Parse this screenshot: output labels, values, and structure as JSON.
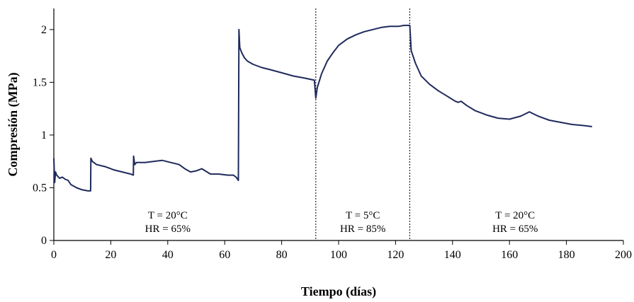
{
  "chart_data": {
    "type": "line",
    "title": "",
    "xlabel": "Tiempo (días)",
    "ylabel": "Compresión (MPa)",
    "xlim": [
      0,
      200
    ],
    "ylim": [
      0,
      2.2
    ],
    "xticks": [
      0,
      20,
      40,
      60,
      80,
      100,
      120,
      140,
      160,
      180,
      200
    ],
    "yticks": [
      0,
      0.5,
      1,
      1.5,
      2
    ],
    "xtick_labels": [
      "0",
      "20",
      "40",
      "60",
      "80",
      "100",
      "120",
      "140",
      "160",
      "180",
      "200"
    ],
    "ytick_labels": [
      "0",
      "0.5",
      "1",
      "1.5",
      "2"
    ],
    "grid": false,
    "line_color": "#1f2a5c",
    "divider_lines_x": [
      92,
      125
    ],
    "annotations": [
      {
        "x": 40,
        "y": 0.22,
        "line1": "T = 20°C",
        "line2": "HR = 65%"
      },
      {
        "x": 108.5,
        "y": 0.22,
        "line1": "T = 5°C",
        "line2": "HR = 85%"
      },
      {
        "x": 162,
        "y": 0.22,
        "line1": "T = 20°C",
        "line2": "HR = 65%"
      }
    ],
    "series": [
      {
        "x": [
          0,
          0.3,
          0.6,
          1,
          2,
          3,
          4,
          5,
          6,
          8,
          10,
          12,
          12.9,
          13,
          13.5,
          15,
          18,
          21,
          24,
          27,
          27.9,
          28,
          28.4,
          29,
          32,
          35,
          38,
          41,
          44,
          46,
          48,
          50,
          52,
          55,
          58,
          61,
          63,
          64,
          64.8,
          65,
          65.3,
          66,
          67,
          68,
          70,
          73,
          76,
          80,
          84,
          88,
          91.5,
          92,
          92.5,
          94,
          96,
          98,
          100,
          103,
          106,
          109,
          112,
          115,
          118,
          121,
          123,
          124.5,
          125,
          125.5,
          127,
          129,
          132,
          135,
          138,
          141,
          142,
          143,
          145,
          148,
          152,
          156,
          160,
          164,
          167,
          170,
          174,
          178,
          182,
          186,
          189
        ],
        "y": [
          0.78,
          0.55,
          0.65,
          0.62,
          0.59,
          0.6,
          0.58,
          0.57,
          0.53,
          0.5,
          0.48,
          0.47,
          0.47,
          0.78,
          0.75,
          0.72,
          0.7,
          0.67,
          0.65,
          0.63,
          0.62,
          0.8,
          0.72,
          0.74,
          0.74,
          0.75,
          0.76,
          0.74,
          0.72,
          0.68,
          0.65,
          0.66,
          0.68,
          0.63,
          0.63,
          0.62,
          0.62,
          0.6,
          0.57,
          2.0,
          1.83,
          1.78,
          1.73,
          1.7,
          1.67,
          1.64,
          1.62,
          1.59,
          1.56,
          1.54,
          1.52,
          1.35,
          1.45,
          1.58,
          1.7,
          1.78,
          1.85,
          1.91,
          1.95,
          1.98,
          2.0,
          2.02,
          2.03,
          2.03,
          2.04,
          2.04,
          2.04,
          1.8,
          1.68,
          1.56,
          1.48,
          1.42,
          1.37,
          1.32,
          1.31,
          1.32,
          1.28,
          1.23,
          1.19,
          1.16,
          1.15,
          1.18,
          1.22,
          1.18,
          1.14,
          1.12,
          1.1,
          1.09,
          1.08
        ]
      }
    ]
  }
}
